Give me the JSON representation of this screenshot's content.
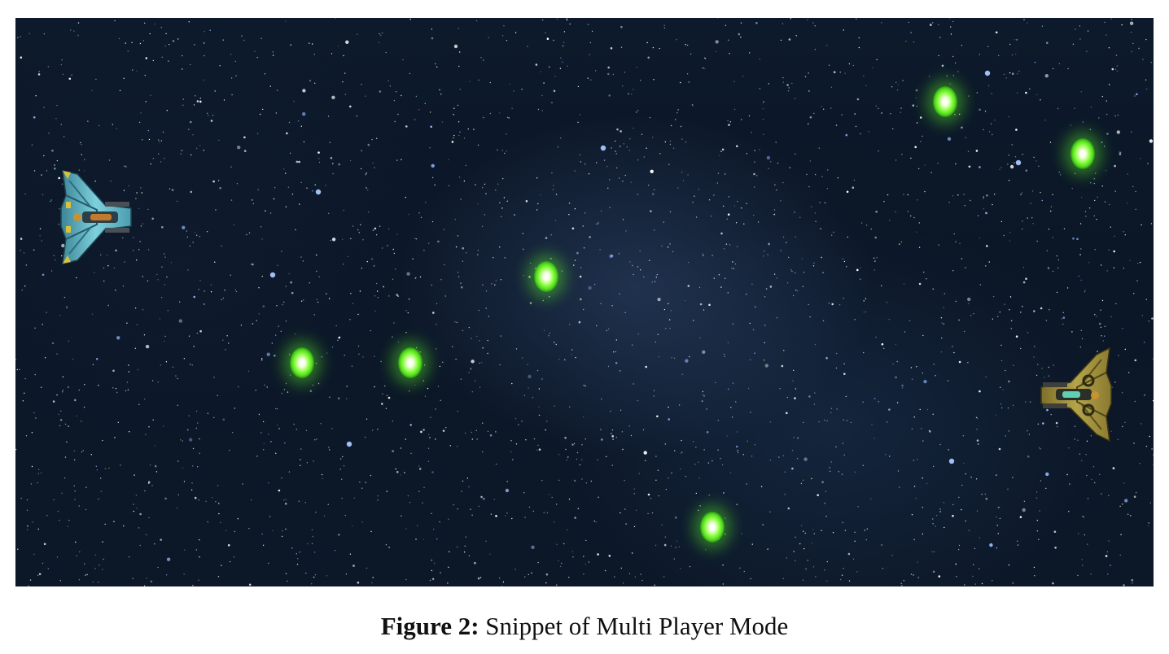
{
  "caption": {
    "label": "Figure 2:",
    "text": " Snippet of Multi Player Mode"
  },
  "game": {
    "background": "starfield",
    "players": [
      {
        "id": "player-1",
        "color": "#5fb7c9",
        "facing": "right",
        "icon": "spaceship-icon"
      },
      {
        "id": "player-2",
        "color": "#9a8a3a",
        "facing": "left",
        "icon": "spaceship-icon"
      }
    ],
    "projectile_color": "#5ce626"
  }
}
